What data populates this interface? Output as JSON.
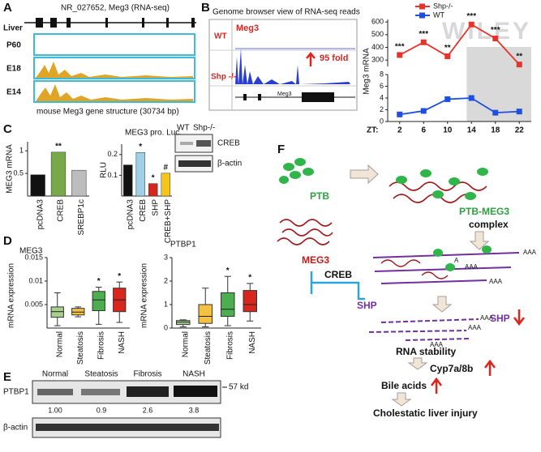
{
  "watermark": "WILEY",
  "panel_a": {
    "label": "A",
    "title": "NR_027652, Meg3 (RNA-seq)",
    "row_label": "Liver",
    "tracks": [
      "P60",
      "E18",
      "E14"
    ],
    "caption": "mouse Meg3 gene structure (30734 bp)"
  },
  "panel_b": {
    "label": "B",
    "title": "Genome browser view of RNA-seq reads",
    "wt": "WT",
    "ko": "Shp -/-",
    "gene": "Meg3",
    "fold": "95 fold",
    "gene_small": "Meg3",
    "chart": {
      "type": "line",
      "ylabel": "Meg3 mRNA",
      "xlabel": "ZT:",
      "x": [
        2,
        6,
        10,
        14,
        18,
        22
      ],
      "xlim": [
        0,
        24
      ],
      "ylim_top": [
        250,
        620
      ],
      "yticks_top": [
        300,
        400,
        500,
        600
      ],
      "ylim_bottom": [
        0,
        8
      ],
      "yticks_bottom": [
        0,
        2,
        4,
        6,
        8
      ],
      "series": [
        {
          "name": "Shp-/-",
          "color": "#e8322a",
          "values": [
            340,
            440,
            330,
            580,
            470,
            265
          ],
          "annotations": [
            "***",
            "***",
            "**",
            "***",
            "***",
            "**"
          ]
        },
        {
          "name": "WT",
          "color": "#1f4fe0",
          "values": [
            1.2,
            1.8,
            3.8,
            4.0,
            1.5,
            1.7
          ]
        }
      ]
    }
  },
  "panel_c": {
    "label": "C",
    "mrna": {
      "type": "bar",
      "ylabel": "MEG3 mRNA",
      "categories": [
        "pcDNA3",
        "CREB",
        "SREBP1c"
      ],
      "values": [
        0.47,
        0.97,
        0.57
      ],
      "colors": [
        "#111111",
        "#77a84a",
        "#bdbdbd"
      ],
      "annotations": [
        null,
        "**",
        null
      ],
      "ylim": [
        0,
        1.2
      ],
      "yticks": [
        0.5,
        1
      ]
    },
    "luc": {
      "type": "bar",
      "title": "MEG3 pro. Luc.",
      "ylabel": "RLU",
      "categories": [
        "pcDNA3",
        "CREB",
        "SHP",
        "CREB+SHP"
      ],
      "values": [
        0.15,
        0.21,
        0.06,
        0.11
      ],
      "colors": [
        "#111111",
        "#9fd0e6",
        "#d7261e",
        "#f5c518"
      ],
      "annotations": [
        null,
        "*",
        "*",
        "#"
      ],
      "ylim": [
        0,
        0.25
      ],
      "yticks": [
        0.1,
        0.2
      ]
    },
    "blot": {
      "lanes": [
        "WT",
        "Shp-/-"
      ],
      "bands": [
        "CREB",
        "β-actin"
      ]
    }
  },
  "panel_d": {
    "label": "D",
    "ylabel": "mRNA expression",
    "charts": [
      {
        "type": "box",
        "title": "MEG3",
        "categories": [
          "Normal",
          "Steatosis",
          "Fibrosis",
          "NASH"
        ],
        "colors": [
          "#a8d08d",
          "#f5c142",
          "#4cae4f",
          "#d9261c"
        ],
        "ylim": [
          0,
          0.015
        ],
        "yticks": [
          0.005,
          0.01,
          0.015
        ],
        "annotations": [
          null,
          null,
          "*",
          "*"
        ],
        "boxes": [
          {
            "min": 0.0005,
            "q1": 0.0023,
            "median": 0.0035,
            "q3": 0.0045,
            "max": 0.0075
          },
          {
            "min": 0.0024,
            "q1": 0.0028,
            "median": 0.0034,
            "q3": 0.0042,
            "max": 0.0045
          },
          {
            "min": 0.0008,
            "q1": 0.0037,
            "median": 0.006,
            "q3": 0.0078,
            "max": 0.0087
          },
          {
            "min": 0.0012,
            "q1": 0.0035,
            "median": 0.006,
            "q3": 0.0085,
            "max": 0.0098
          }
        ]
      },
      {
        "type": "box",
        "title": "PTBP1",
        "categories": [
          "Normal",
          "Steatosis",
          "Fibrosis",
          "NASH"
        ],
        "colors": [
          "#a8d08d",
          "#f5c142",
          "#4cae4f",
          "#d9261c"
        ],
        "ylim": [
          0,
          3
        ],
        "yticks": [
          0,
          1,
          2,
          3
        ],
        "annotations": [
          null,
          null,
          "*",
          "*"
        ],
        "boxes": [
          {
            "min": 0.05,
            "q1": 0.15,
            "median": 0.25,
            "q3": 0.32,
            "max": 0.35
          },
          {
            "min": 0.05,
            "q1": 0.2,
            "median": 0.5,
            "q3": 1.0,
            "max": 1.7
          },
          {
            "min": 0.1,
            "q1": 0.5,
            "median": 0.8,
            "q3": 1.5,
            "max": 2.2
          },
          {
            "min": 0.3,
            "q1": 0.7,
            "median": 1.0,
            "q3": 1.6,
            "max": 1.9
          }
        ]
      }
    ]
  },
  "panel_e": {
    "label": "E",
    "lanes": [
      "Normal",
      "Steatosis",
      "Fibrosis",
      "NASH"
    ],
    "rows": [
      "PTBP1",
      "β-actin"
    ],
    "size": "57 kd",
    "ratios": [
      "1.00",
      "0.9",
      "2.6",
      "3.8"
    ]
  },
  "panel_f": {
    "label": "F",
    "ptb": "PTB",
    "meg3": "MEG3",
    "complex_name": "PTB-MEG3",
    "complex": "complex",
    "creb": "CREB",
    "shp": "SHP",
    "polya": "AAA",
    "a": "A",
    "shp_down": "SHP",
    "stability": "RNA stability",
    "cyp": "Cyp7a/8b",
    "bile": "Bile acids",
    "injury": "Cholestatic liver injury"
  }
}
